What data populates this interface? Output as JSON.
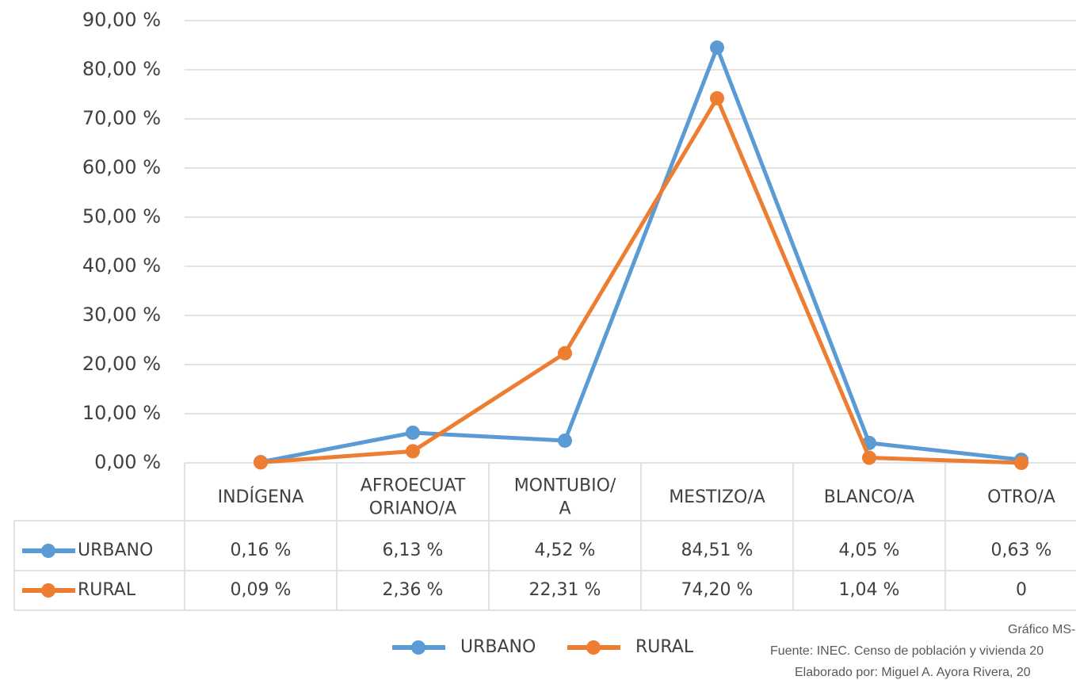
{
  "chart_data": {
    "type": "line",
    "categories": [
      [
        "INDÍGENA"
      ],
      [
        "AFROECUAT",
        "ORIANO/A"
      ],
      [
        "MONTUBIO/",
        "A"
      ],
      [
        "MESTIZO/A"
      ],
      [
        "BLANCO/A"
      ],
      [
        "OTRO/A"
      ]
    ],
    "series": [
      {
        "name": "URBANO",
        "color": "#5b9bd5",
        "values": [
          0.16,
          6.13,
          4.52,
          84.51,
          4.05,
          0.63
        ],
        "value_labels": [
          "0,16 %",
          "6,13 %",
          "4,52 %",
          "84,51 %",
          "4,05 %",
          "0,63 %"
        ]
      },
      {
        "name": "RURAL",
        "color": "#ed7d31",
        "values": [
          0.09,
          2.36,
          22.31,
          74.2,
          1.04,
          0
        ],
        "value_labels": [
          "0,09 %",
          "2,36 %",
          "22,31 %",
          "74,20 %",
          "1,04 %",
          "0"
        ]
      }
    ],
    "ylim": [
      0,
      90
    ],
    "yticks": [
      {
        "value": 0,
        "label": "0,00 %"
      },
      {
        "value": 10,
        "label": "10,00 %"
      },
      {
        "value": 20,
        "label": "20,00 %"
      },
      {
        "value": 30,
        "label": "30,00 %"
      },
      {
        "value": 40,
        "label": "40,00 %"
      },
      {
        "value": 50,
        "label": "50,00 %"
      },
      {
        "value": 60,
        "label": "60,00 %"
      },
      {
        "value": 70,
        "label": "70,00 %"
      },
      {
        "value": 80,
        "label": "80,00 %"
      },
      {
        "value": 90,
        "label": "90,00 %"
      }
    ],
    "grid": true,
    "legend": "bottom",
    "annotations": [
      "Gráfico MS-SE",
      "Fuente: INEC. Censo de población y vivienda 20",
      "Elaborado por: Miguel A. Ayora Rivera, 20"
    ]
  }
}
